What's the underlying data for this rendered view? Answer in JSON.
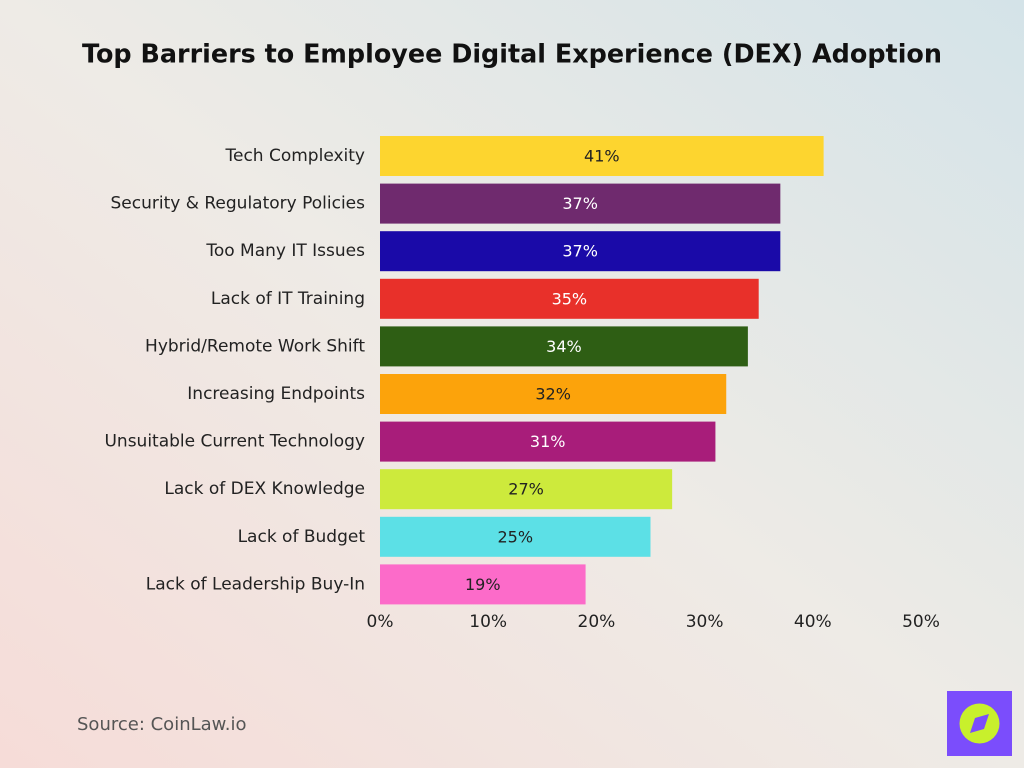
{
  "chart_data": {
    "type": "bar",
    "orientation": "horizontal",
    "title": "Top Barriers to Employee Digital Experience (DEX) Adoption",
    "categories": [
      "Tech Complexity",
      "Security & Regulatory Policies",
      "Too Many IT Issues",
      "Lack of IT Training",
      "Hybrid/Remote Work Shift",
      "Increasing Endpoints",
      "Unsuitable Current Technology",
      "Lack of DEX Knowledge",
      "Lack of Budget",
      "Lack of Leadership Buy-In"
    ],
    "values": [
      41,
      37,
      37,
      35,
      34,
      32,
      31,
      27,
      25,
      19
    ],
    "value_labels": [
      "41%",
      "37%",
      "37%",
      "35%",
      "34%",
      "32%",
      "31%",
      "27%",
      "25%",
      "19%"
    ],
    "colors": [
      "#fdd52f",
      "#6f2a6e",
      "#1a0aa8",
      "#e8302a",
      "#2e5e14",
      "#fca30b",
      "#a81d7a",
      "#cdea3c",
      "#5ce0e6",
      "#fc6bc9"
    ],
    "xlim": [
      0,
      50
    ],
    "xticks": [
      {
        "value": 0,
        "label": "0%"
      },
      {
        "value": 10,
        "label": "10%"
      },
      {
        "value": 20,
        "label": "20%"
      },
      {
        "value": 30,
        "label": "30%"
      },
      {
        "value": 40,
        "label": "40%"
      },
      {
        "value": 50,
        "label": "50%"
      }
    ],
    "grid": false,
    "source": "Source: CoinLaw.io"
  }
}
